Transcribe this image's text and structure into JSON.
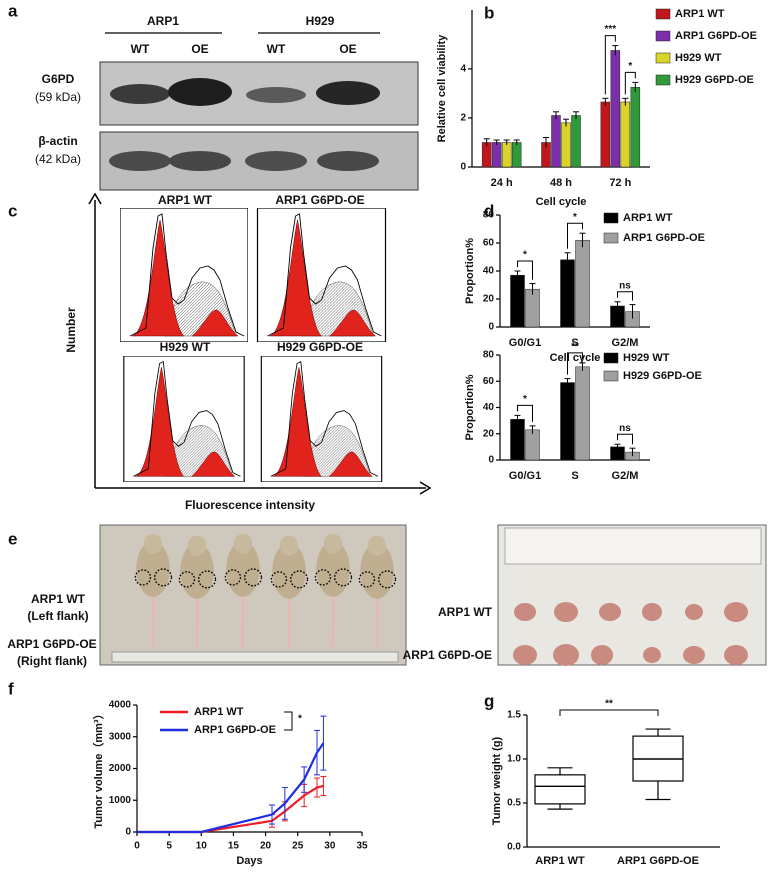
{
  "panel_labels": [
    "a",
    "b",
    "c",
    "d",
    "e",
    "f",
    "g"
  ],
  "blot": {
    "cell_lines": [
      "ARP1",
      "H929"
    ],
    "lanes": [
      "WT",
      "OE",
      "WT",
      "OE"
    ],
    "proteins": [
      {
        "name": "G6PD",
        "size": "(59 kDa)"
      },
      {
        "name": "β-actin",
        "size": "(42 kDa)"
      }
    ]
  },
  "flow": {
    "titles": [
      "ARP1 WT",
      "ARP1 G6PD-OE",
      "H929 WT",
      "H929 G6PD-OE"
    ],
    "y_axis": "Number",
    "x_axis": "Fluorescence intensity"
  },
  "xenograft": {
    "mouse_labels": [
      {
        "name": "ARP1 WT",
        "side": "(Left flank)"
      },
      {
        "name": "ARP1 G6PD-OE",
        "side": "(Right flank)"
      }
    ],
    "tumor_rows": [
      "ARP1 WT",
      "ARP1 G6PD-OE"
    ]
  },
  "chart_data": [
    {
      "type": "bar",
      "ylabel": "Relative cell viability",
      "xlabel": "Cell cycle",
      "categories": [
        "24 h",
        "48 h",
        "72 h"
      ],
      "series": [
        {
          "name": "ARP1 WT",
          "color": "#c0161c",
          "values": [
            1.0,
            1.0,
            2.65
          ],
          "errors": [
            0.15,
            0.2,
            0.15
          ]
        },
        {
          "name": "ARP1 G6PD-OE",
          "color": "#7b2fa8",
          "values": [
            1.0,
            2.1,
            4.75
          ],
          "errors": [
            0.1,
            0.15,
            0.2
          ]
        },
        {
          "name": "H929 WT",
          "color": "#d9d42a",
          "values": [
            1.0,
            1.8,
            2.65
          ],
          "errors": [
            0.1,
            0.15,
            0.15
          ]
        },
        {
          "name": "H929 G6PD-OE",
          "color": "#2f9a3a",
          "values": [
            1.0,
            2.1,
            3.25
          ],
          "errors": [
            0.1,
            0.15,
            0.2
          ]
        }
      ],
      "ylim": [
        0,
        6.4
      ],
      "yticks": [
        0,
        2,
        4
      ],
      "annotations": [
        "***",
        "*"
      ]
    },
    {
      "type": "bar",
      "ylabel": "Proportion%",
      "xlabel": "Cell cycle",
      "categories": [
        "G0/G1",
        "S",
        "G2/M"
      ],
      "series": [
        {
          "name": "ARP1 WT",
          "color": "#000000",
          "values": [
            37,
            48,
            15
          ],
          "errors": [
            3,
            5,
            3
          ]
        },
        {
          "name": "ARP1 G6PD-OE",
          "color": "#a0a0a0",
          "values": [
            27,
            62,
            11
          ],
          "errors": [
            4,
            5,
            5
          ]
        }
      ],
      "ylim": [
        0,
        80
      ],
      "yticks": [
        0,
        20,
        40,
        60,
        80
      ],
      "annotations": [
        "*",
        "*",
        "ns"
      ]
    },
    {
      "type": "bar",
      "ylabel": "Proportion%",
      "categories": [
        "G0/G1",
        "S",
        "G2/M"
      ],
      "series": [
        {
          "name": "H929 WT",
          "color": "#000000",
          "values": [
            31,
            59,
            10
          ],
          "errors": [
            3,
            3,
            2
          ]
        },
        {
          "name": "H929 G6PD-OE",
          "color": "#a0a0a0",
          "values": [
            23,
            71,
            6
          ],
          "errors": [
            3,
            3,
            3
          ]
        }
      ],
      "ylim": [
        0,
        80
      ],
      "yticks": [
        0,
        20,
        40,
        60,
        80
      ],
      "annotations": [
        "*",
        "**",
        "ns"
      ]
    },
    {
      "type": "line",
      "ylabel": "Tumor volume（mm³）",
      "xlabel": "Days",
      "x": [
        0,
        10,
        21,
        23,
        26,
        28,
        29
      ],
      "series": [
        {
          "name": "ARP1 WT",
          "color": "#ee1c25",
          "values": [
            0,
            0,
            350,
            650,
            1150,
            1400,
            1450
          ],
          "errors": [
            null,
            null,
            200,
            300,
            350,
            300,
            300
          ]
        },
        {
          "name": "ARP1 G6PD-OE",
          "color": "#1f2fe0",
          "values": [
            0,
            0,
            550,
            900,
            1650,
            2500,
            2800
          ],
          "errors": [
            null,
            null,
            300,
            500,
            400,
            700,
            850
          ]
        }
      ],
      "xlim": [
        0,
        35
      ],
      "xticks": [
        0,
        5,
        10,
        15,
        20,
        25,
        30,
        35
      ],
      "ylim": [
        0,
        4000
      ],
      "yticks": [
        0,
        1000,
        2000,
        3000,
        4000
      ],
      "annotations": [
        "*"
      ]
    },
    {
      "type": "box",
      "ylabel": "Tumor weight (g)",
      "categories": [
        "ARP1 WT",
        "ARP1 G6PD-OE"
      ],
      "boxes": [
        {
          "min": 0.43,
          "q1": 0.49,
          "median": 0.69,
          "q3": 0.82,
          "max": 0.9
        },
        {
          "min": 0.54,
          "q1": 0.75,
          "median": 1.0,
          "q3": 1.26,
          "max": 1.34
        }
      ],
      "color": "#000000",
      "ylim": [
        0,
        1.5
      ],
      "yticks": [
        {
          "value": 0,
          "label": "0.0"
        },
        {
          "value": 0.5,
          "label": "0.5"
        },
        {
          "value": 1,
          "label": "1.0"
        },
        {
          "value": 1.5,
          "label": "1.5"
        }
      ],
      "annotations": [
        "**"
      ]
    }
  ]
}
